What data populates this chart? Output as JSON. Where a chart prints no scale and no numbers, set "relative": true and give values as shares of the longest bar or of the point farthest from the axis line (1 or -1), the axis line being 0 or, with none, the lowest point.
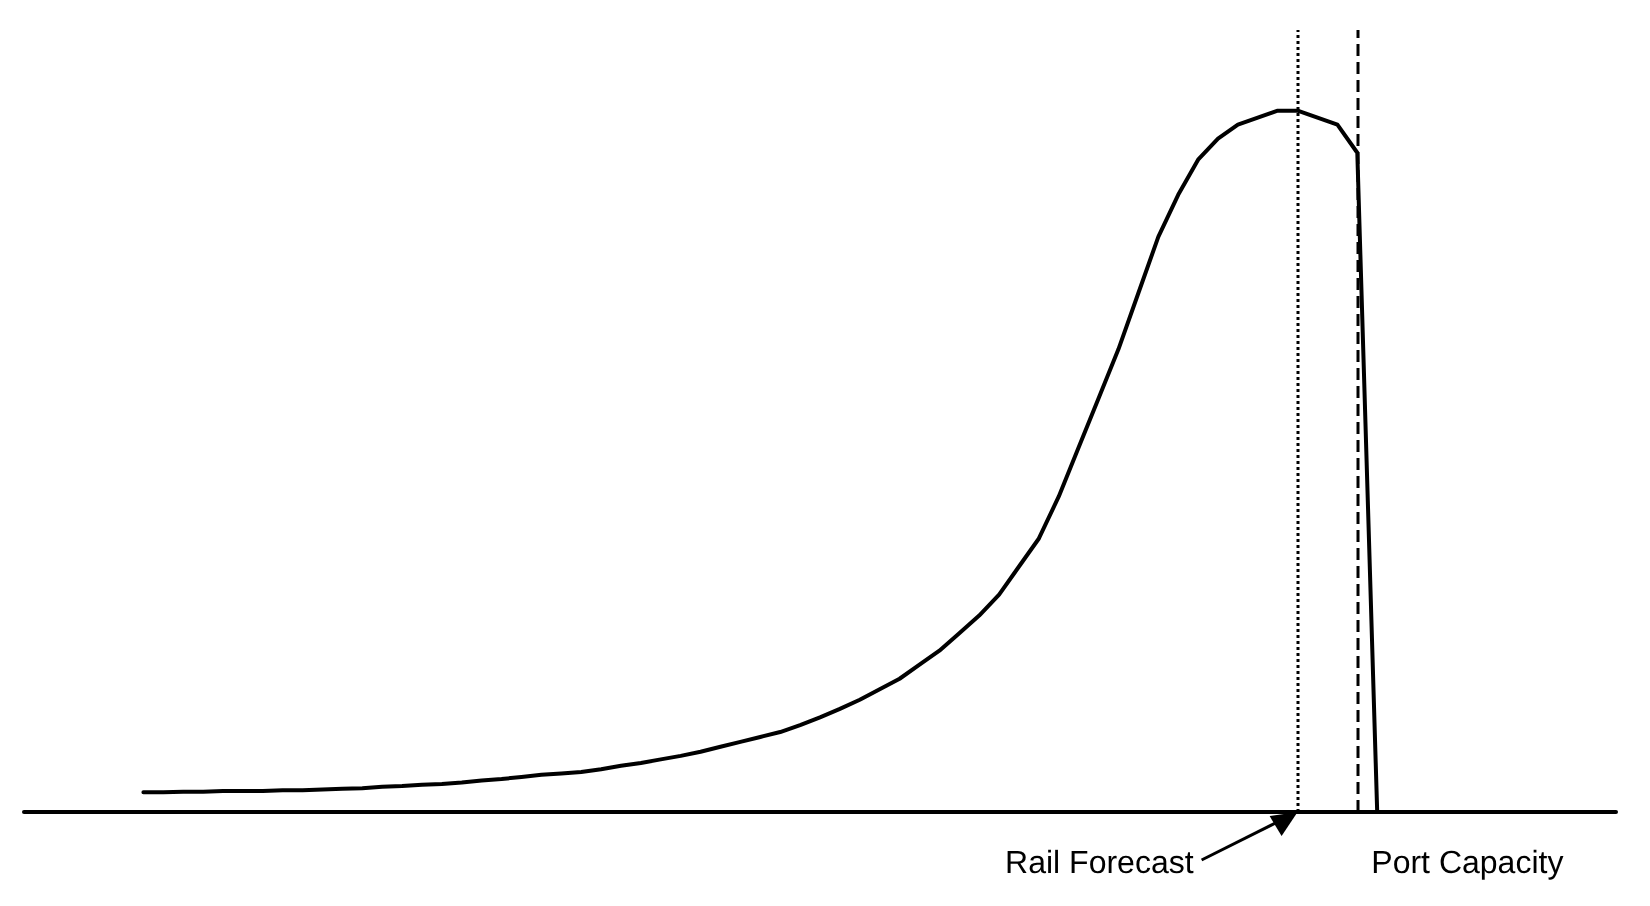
{
  "chart_data": {
    "type": "line",
    "relative": true,
    "grid": false,
    "marker": "none",
    "line_style": "solid",
    "categories": [
      null,
      null,
      null,
      null,
      null,
      null,
      null,
      null,
      null,
      null,
      null,
      null,
      null,
      null,
      null,
      null,
      null,
      null,
      null,
      null,
      null,
      null,
      null,
      null,
      null,
      null,
      null,
      null,
      null,
      null,
      null,
      null,
      null,
      null,
      null,
      null,
      null,
      null,
      null,
      null,
      null,
      null,
      null,
      null,
      null,
      null,
      null,
      null,
      null,
      null,
      null,
      null,
      null,
      null,
      null,
      null,
      null,
      null,
      null,
      null,
      null,
      null,
      null,
      null,
      null,
      null,
      null,
      null,
      null,
      null,
      null,
      null,
      null,
      null,
      null,
      null,
      null,
      null,
      null,
      null,
      null
    ],
    "series": [
      {
        "color": "#000000",
        "values": [
          null,
          null,
          null,
          null,
          null,
          null,
          0.028,
          0.028,
          0.029,
          0.029,
          0.03,
          0.03,
          0.03,
          0.031,
          0.031,
          0.032,
          0.033,
          0.034,
          0.036,
          0.037,
          0.039,
          0.04,
          0.042,
          0.045,
          0.047,
          0.05,
          0.053,
          0.055,
          0.057,
          0.061,
          0.066,
          0.07,
          0.075,
          0.08,
          0.086,
          0.093,
          0.1,
          0.107,
          0.114,
          0.124,
          0.135,
          0.147,
          0.16,
          0.175,
          0.19,
          0.21,
          0.23,
          0.255,
          0.28,
          0.31,
          0.35,
          0.39,
          0.45,
          0.52,
          0.59,
          0.66,
          0.74,
          0.82,
          0.88,
          0.93,
          0.96,
          0.98,
          0.99,
          1.0,
          1.0,
          0.99,
          0.98,
          0.94,
          0,
          null,
          null,
          null,
          null,
          null,
          null,
          null,
          null,
          null,
          null,
          null,
          null
        ]
      }
    ],
    "annotations": [
      "Rail Forecast",
      "Port Capacity"
    ]
  }
}
